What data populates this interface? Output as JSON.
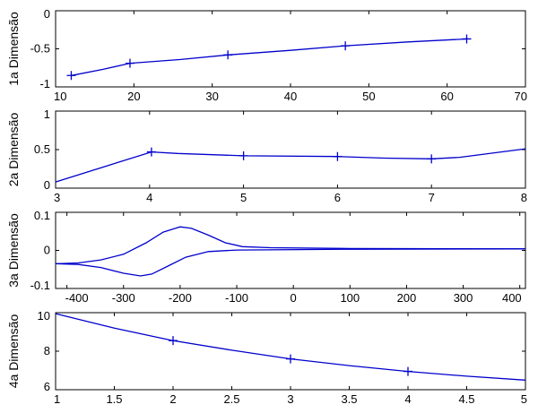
{
  "colors": {
    "series": "#0000cc",
    "axes": "#000000",
    "background": "#ffffff"
  },
  "chart_data": [
    {
      "type": "line",
      "ylabel": "1a Dimensão",
      "xlim": [
        10,
        70
      ],
      "ylim": [
        -1,
        0
      ],
      "xticks": [
        10,
        20,
        30,
        40,
        50,
        60,
        70
      ],
      "xtick_labels": [
        "10",
        "20",
        "30",
        "40",
        "50",
        "60",
        "70"
      ],
      "yticks": [
        -1,
        -0.5,
        0
      ],
      "ytick_labels": [
        "-1",
        "-0.5",
        "0"
      ],
      "grid": false,
      "series": [
        {
          "marker": "plus",
          "markers": [
            [
              12,
              -0.85
            ],
            [
              19.5,
              -0.69
            ],
            [
              32,
              -0.58
            ],
            [
              47,
              -0.46
            ],
            [
              62.5,
              -0.37
            ]
          ],
          "points": [
            [
              12,
              -0.85
            ],
            [
              16,
              -0.77
            ],
            [
              19.5,
              -0.69
            ],
            [
              26,
              -0.64
            ],
            [
              32,
              -0.58
            ],
            [
              40,
              -0.52
            ],
            [
              47,
              -0.46
            ],
            [
              55,
              -0.41
            ],
            [
              62.5,
              -0.37
            ]
          ]
        }
      ]
    },
    {
      "type": "line",
      "ylabel": "2a Dimensão",
      "xlim": [
        3,
        8
      ],
      "ylim": [
        0,
        1
      ],
      "xticks": [
        3,
        4,
        5,
        6,
        7,
        8
      ],
      "xtick_labels": [
        "3",
        "4",
        "5",
        "6",
        "7",
        "8"
      ],
      "yticks": [
        0,
        0.5,
        1
      ],
      "ytick_labels": [
        "0",
        "0.5",
        "1"
      ],
      "grid": false,
      "series": [
        {
          "marker": "plus",
          "markers": [
            [
              4.02,
              0.47
            ],
            [
              5,
              0.42
            ],
            [
              6,
              0.41
            ],
            [
              7,
              0.38
            ]
          ],
          "points": [
            [
              3,
              0.08
            ],
            [
              4.02,
              0.47
            ],
            [
              4.3,
              0.45
            ],
            [
              5,
              0.42
            ],
            [
              6,
              0.41
            ],
            [
              6.5,
              0.39
            ],
            [
              7,
              0.38
            ],
            [
              7.3,
              0.4
            ],
            [
              8,
              0.51
            ]
          ]
        }
      ]
    },
    {
      "type": "line",
      "ylabel": "3a Dimensão",
      "xlim": [
        -420,
        410
      ],
      "ylim": [
        -0.1,
        0.1
      ],
      "xticks": [
        -400,
        -300,
        -200,
        -100,
        0,
        100,
        200,
        300,
        400
      ],
      "xtick_labels": [
        "-400",
        "-300",
        "-200",
        "-100",
        "0",
        "100",
        "200",
        "300",
        "400"
      ],
      "yticks": [
        -0.1,
        0,
        0.1
      ],
      "ytick_labels": [
        "-0.1",
        "0",
        "0.1"
      ],
      "grid": false,
      "series": [
        {
          "marker": "plus",
          "markers": [],
          "points": [
            [
              -420,
              -0.035
            ],
            [
              -380,
              -0.033
            ],
            [
              -340,
              -0.025
            ],
            [
              -300,
              -0.01
            ],
            [
              -260,
              0.02
            ],
            [
              -230,
              0.048
            ],
            [
              -200,
              0.062
            ],
            [
              -180,
              0.058
            ],
            [
              -150,
              0.04
            ],
            [
              -120,
              0.02
            ],
            [
              -90,
              0.01
            ],
            [
              -40,
              0.007
            ],
            [
              100,
              0.005
            ],
            [
              410,
              0.004
            ]
          ]
        },
        {
          "marker": "plus",
          "markers": [],
          "points": [
            [
              -420,
              -0.035
            ],
            [
              -380,
              -0.037
            ],
            [
              -340,
              -0.045
            ],
            [
              -300,
              -0.06
            ],
            [
              -270,
              -0.067
            ],
            [
              -250,
              -0.062
            ],
            [
              -220,
              -0.04
            ],
            [
              -190,
              -0.018
            ],
            [
              -150,
              -0.003
            ],
            [
              -100,
              0.001
            ],
            [
              100,
              0.003
            ],
            [
              410,
              0.004
            ]
          ]
        }
      ]
    },
    {
      "type": "line",
      "ylabel": "4a Dimensão",
      "xlim": [
        1,
        5
      ],
      "ylim": [
        6,
        10
      ],
      "xticks": [
        1,
        1.5,
        2,
        2.5,
        3,
        3.5,
        4,
        4.5,
        5
      ],
      "xtick_labels": [
        "1",
        "1.5",
        "2",
        "2.5",
        "3",
        "3.5",
        "4",
        "4.5",
        "5"
      ],
      "yticks": [
        6,
        8,
        10
      ],
      "ytick_labels": [
        "6",
        "8",
        "10"
      ],
      "grid": false,
      "series": [
        {
          "marker": "plus",
          "markers": [
            [
              2,
              8.55
            ],
            [
              3,
              7.6
            ],
            [
              4,
              6.95
            ]
          ],
          "points": [
            [
              1,
              9.95
            ],
            [
              1.5,
              9.2
            ],
            [
              2,
              8.55
            ],
            [
              2.5,
              8.05
            ],
            [
              3,
              7.6
            ],
            [
              3.5,
              7.25
            ],
            [
              4,
              6.95
            ],
            [
              4.5,
              6.7
            ],
            [
              5,
              6.5
            ]
          ]
        }
      ]
    }
  ]
}
